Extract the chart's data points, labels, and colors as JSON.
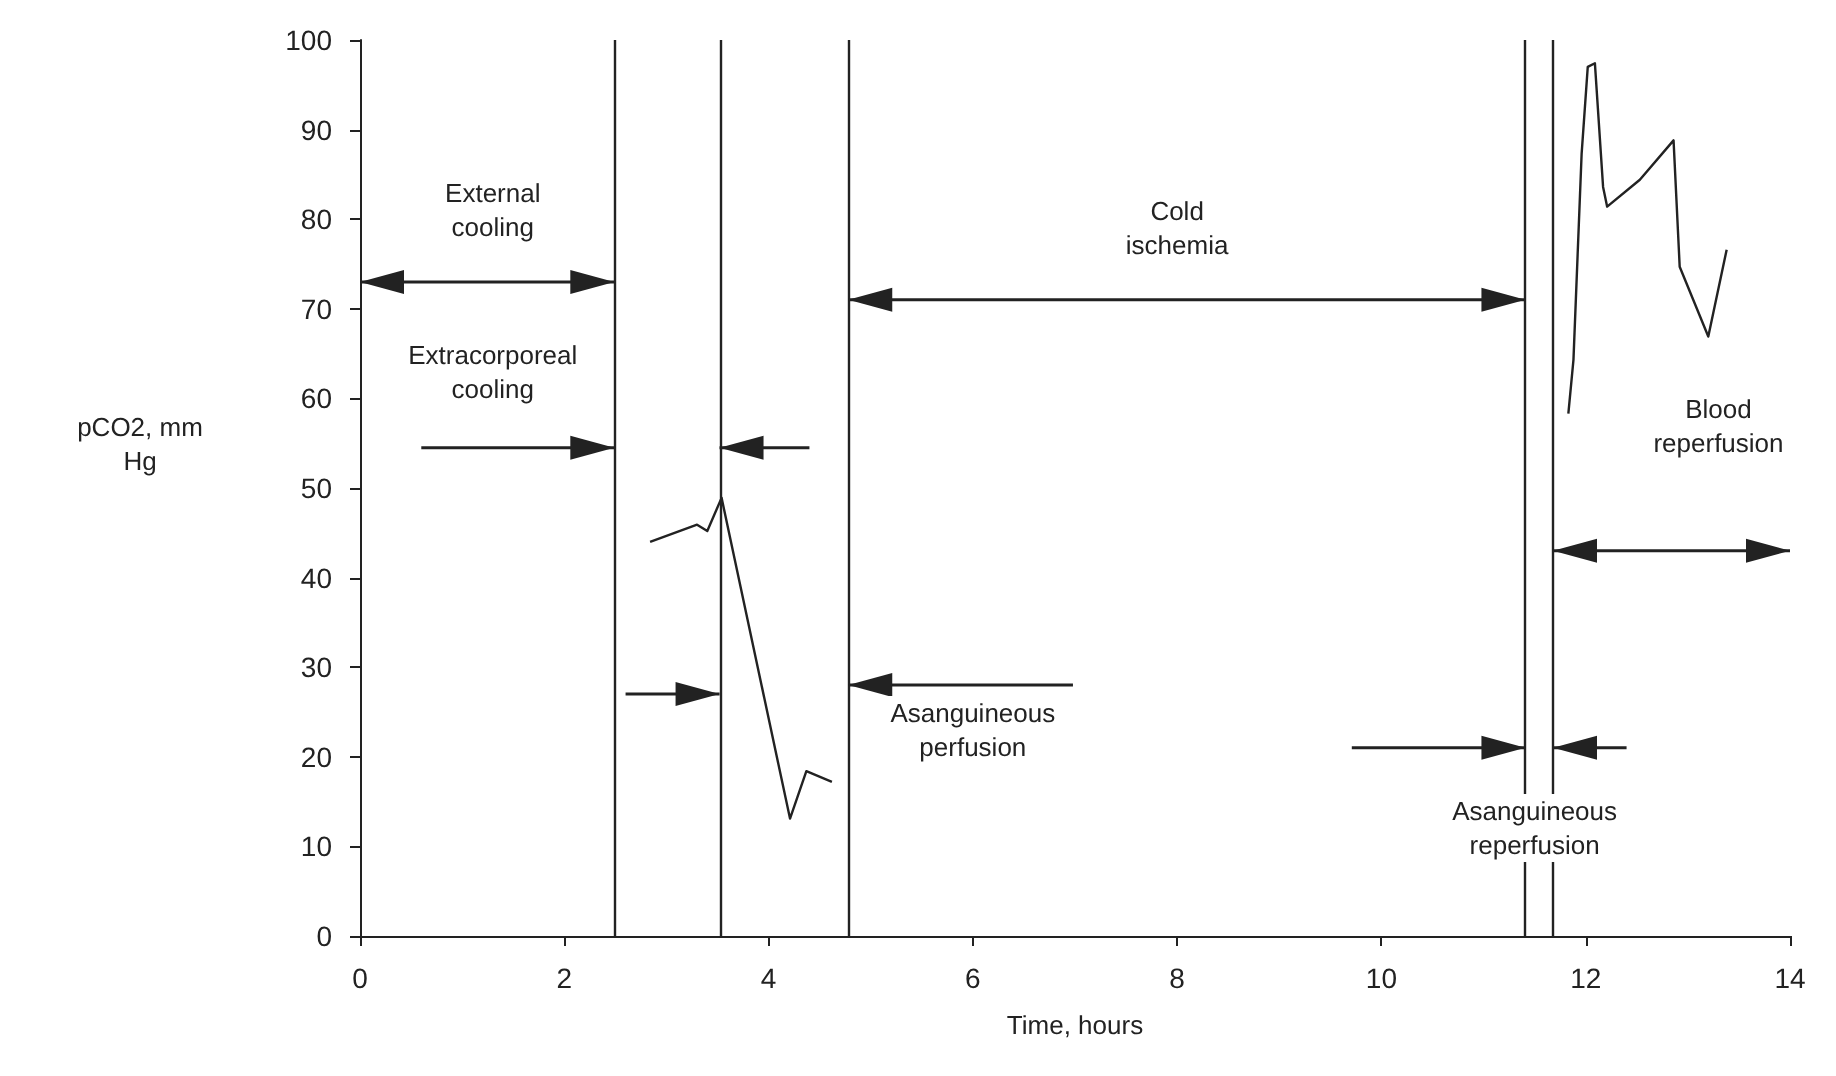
{
  "chart_data": {
    "type": "line",
    "xlabel": "Time, hours",
    "ylabel": "pCO2, mm Hg",
    "x": [
      2.84,
      3.3,
      3.4,
      3.54,
      4.21,
      4.37,
      4.62,
      null,
      11.83,
      11.88,
      11.96,
      12.02,
      12.09,
      12.17,
      12.21,
      12.53,
      12.86,
      12.92,
      13.2,
      13.38
    ],
    "series": [
      {
        "color": "#222222",
        "values": [
          44.0,
          45.9,
          45.2,
          48.9,
          13.1,
          18.4,
          17.2,
          null,
          58.3,
          64.3,
          87.3,
          97.0,
          97.4,
          83.6,
          81.4,
          84.4,
          88.8,
          74.7,
          66.9,
          76.6
        ]
      }
    ],
    "xlim": [
      0,
      14
    ],
    "xticks": [
      0,
      2,
      4,
      6,
      8,
      10,
      12,
      14
    ],
    "ylim": [
      0,
      100
    ],
    "yticks": [
      0,
      10,
      20,
      30,
      40,
      50,
      60,
      70,
      80,
      90,
      100
    ],
    "ref_lines": [
      {
        "axis": "x",
        "value": 2.49,
        "color": "#222222"
      },
      {
        "axis": "x",
        "value": 3.52,
        "color": "#222222"
      },
      {
        "axis": "x",
        "value": 4.78,
        "color": "#222222"
      },
      {
        "axis": "x",
        "value": 11.41,
        "color": "#222222"
      },
      {
        "axis": "x",
        "value": 11.68,
        "color": "#222222"
      }
    ],
    "annotations": [
      "External cooling",
      "Extracorporeal cooling",
      "Cold ischemia",
      {
        "text": "Asanguineous perfusion",
        "x": 4.78,
        "y": 28
      },
      {
        "text": "Asanguineous reperfusion",
        "x": 11.41,
        "y": 21
      },
      "Blood reperfusion"
    ],
    "grid": false,
    "marker": "none",
    "line_style": "solid"
  }
}
